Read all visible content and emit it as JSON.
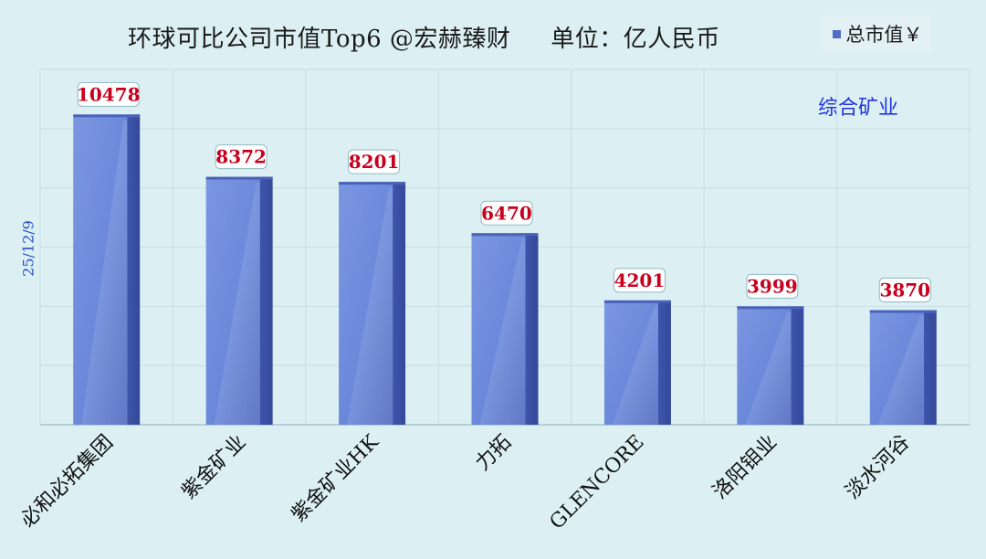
{
  "header": {
    "title": "环球可比公司市值Top6 @宏赫臻财     单位：亿人民币",
    "legend_label": "总市值￥",
    "annotation": "综合矿业",
    "side_date": "25/12/9"
  },
  "colors": {
    "background": "#dcf0f3",
    "bar_front": "#6b88da",
    "bar_side": "#34499a",
    "label_text": "#c8001e",
    "gridline": "#c6dde3",
    "annotation": "#2233dd"
  },
  "chart_data": {
    "type": "bar",
    "categories": [
      "必和必拓集团",
      "紫金矿业",
      "紫金矿业HK",
      "力拓",
      "GLENCORE",
      "洛阳钼业",
      "淡水河谷"
    ],
    "series": [
      {
        "name": "总市值￥",
        "values": [
          10478,
          8372,
          8201,
          6470,
          4201,
          3999,
          3870
        ]
      }
    ],
    "ylim": [
      0,
      12000
    ],
    "grid": true,
    "legend_position": "top-right",
    "data_labels": [
      "10478",
      "8372",
      "8201",
      "6470",
      "4201",
      "3999",
      "3870"
    ]
  }
}
